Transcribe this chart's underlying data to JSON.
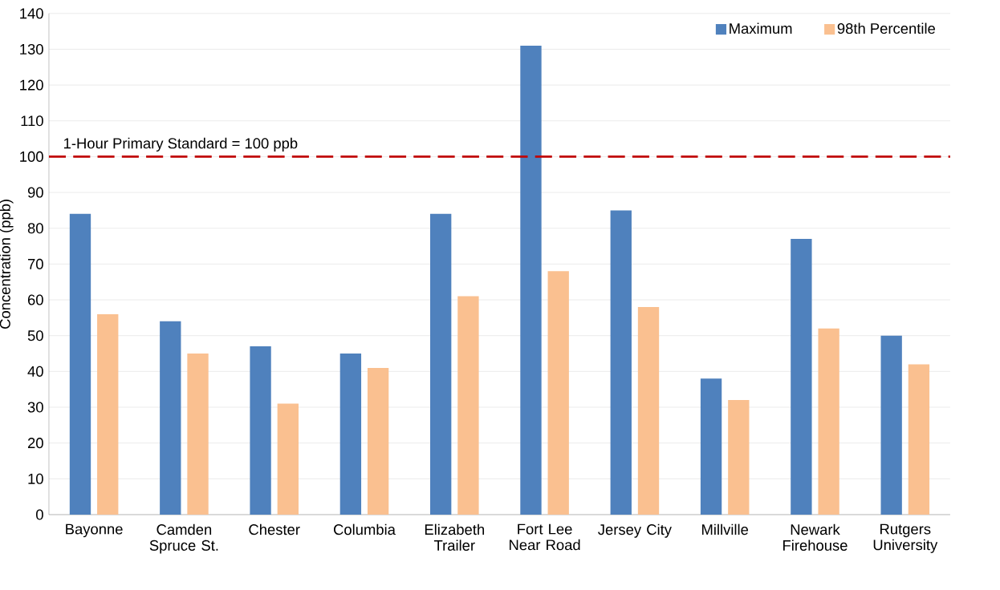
{
  "chart_data": {
    "type": "bar",
    "ylabel": "Concentration (ppb)",
    "categories": [
      "Bayonne",
      "Camden Spruce St.",
      "Chester",
      "Columbia",
      "Elizabeth Trailer",
      "Fort Lee Near Road",
      "Jersey City",
      "Millville",
      "Newark Firehouse",
      "Rutgers University"
    ],
    "series": [
      {
        "name": "Maximum",
        "color": "#4f81bd",
        "values": [
          84,
          54,
          47,
          45,
          84,
          131,
          85,
          38,
          77,
          50
        ]
      },
      {
        "name": "98th Percentile",
        "color": "#fac090",
        "values": [
          56,
          45,
          31,
          41,
          61,
          68,
          58,
          32,
          52,
          42
        ]
      }
    ],
    "ylim": [
      0,
      140
    ],
    "yticks": [
      0,
      10,
      20,
      30,
      40,
      50,
      60,
      70,
      80,
      90,
      100,
      110,
      120,
      130,
      140
    ],
    "grid": "y",
    "legend": "top right",
    "ref_lines": [
      {
        "axis": "y",
        "value": 100,
        "label": "1-Hour Primary Standard = 100 ppb",
        "color": "#c00000",
        "line_style": "dashed"
      }
    ]
  }
}
